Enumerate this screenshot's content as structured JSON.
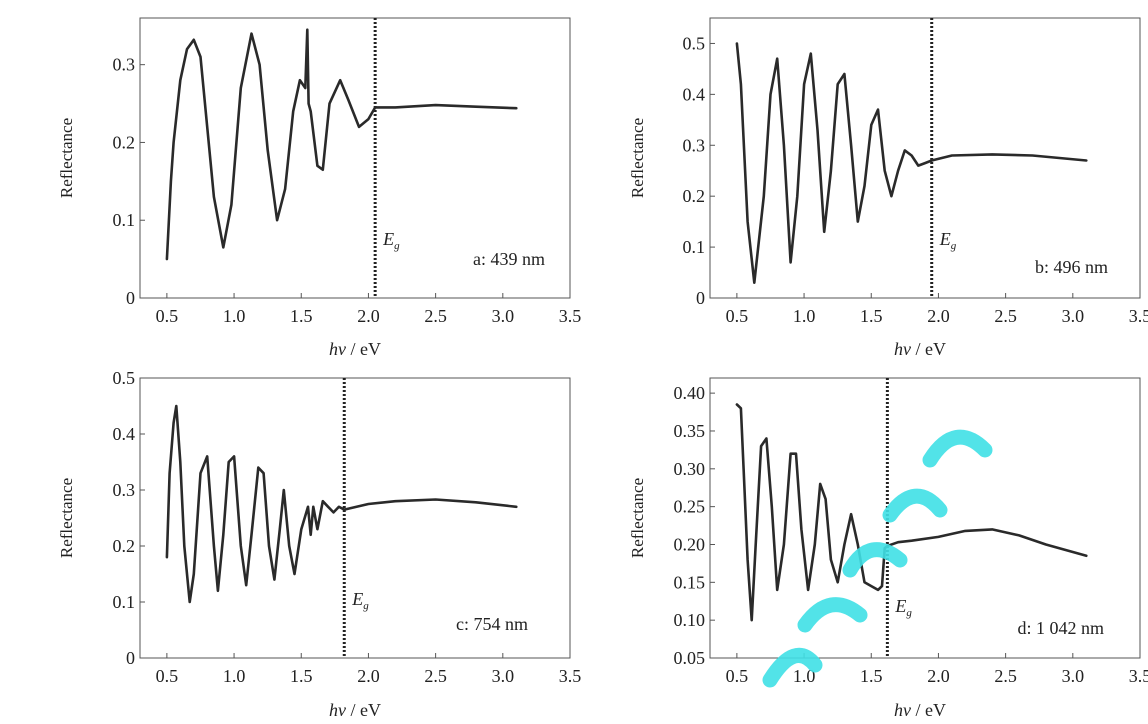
{
  "chart_data": [
    {
      "type": "line",
      "panel": "a",
      "annotation": "a: 439 nm",
      "xlabel_italic": "hν",
      "xlabel_unit": " / eV",
      "ylabel": "Reflectance",
      "xlim": [
        0.3,
        3.5
      ],
      "ylim": [
        0,
        0.36
      ],
      "xticks": [
        0.5,
        1.0,
        1.5,
        2.0,
        2.5,
        3.0,
        3.5
      ],
      "xtick_labels": [
        "0.5",
        "1.0",
        "1.5",
        "2.0",
        "2.5",
        "3.0",
        "3.5"
      ],
      "yticks": [
        0,
        0.1,
        0.2,
        0.3
      ],
      "ytick_labels": [
        "0",
        "0.1",
        "0.2",
        "0.3"
      ],
      "eg_label": "E",
      "eg_sub": "g",
      "eg_x": 2.05,
      "series": [
        {
          "x": [
            0.5,
            0.53,
            0.55,
            0.6,
            0.65,
            0.7,
            0.75,
            0.8,
            0.85,
            0.92,
            0.98,
            1.05,
            1.13,
            1.19,
            1.25,
            1.32,
            1.38,
            1.44,
            1.49,
            1.53,
            1.545,
            1.555,
            1.57,
            1.62,
            1.66,
            1.71,
            1.79,
            1.85,
            1.93,
            2.0,
            2.05,
            2.2,
            2.5,
            2.8,
            3.1
          ],
          "y": [
            0.05,
            0.15,
            0.2,
            0.28,
            0.32,
            0.332,
            0.31,
            0.22,
            0.13,
            0.065,
            0.12,
            0.27,
            0.34,
            0.3,
            0.19,
            0.1,
            0.14,
            0.24,
            0.28,
            0.27,
            0.345,
            0.25,
            0.24,
            0.17,
            0.165,
            0.25,
            0.28,
            0.255,
            0.22,
            0.23,
            0.245,
            0.245,
            0.248,
            0.246,
            0.244
          ]
        }
      ]
    },
    {
      "type": "line",
      "panel": "b",
      "annotation": "b: 496 nm",
      "xlabel_italic": "hν",
      "xlabel_unit": " / eV",
      "ylabel": "Reflectance",
      "xlim": [
        0.3,
        3.5
      ],
      "ylim": [
        0,
        0.55
      ],
      "xticks": [
        0.5,
        1.0,
        1.5,
        2.0,
        2.5,
        3.0,
        3.5
      ],
      "xtick_labels": [
        "0.5",
        "1.0",
        "1.5",
        "2.0",
        "2.5",
        "3.0",
        "3.5"
      ],
      "yticks": [
        0,
        0.1,
        0.2,
        0.3,
        0.4,
        0.5
      ],
      "ytick_labels": [
        "0",
        "0.1",
        "0.2",
        "0.3",
        "0.4",
        "0.5"
      ],
      "eg_label": "E",
      "eg_sub": "g",
      "eg_x": 1.95,
      "series": [
        {
          "x": [
            0.5,
            0.53,
            0.58,
            0.63,
            0.7,
            0.75,
            0.8,
            0.85,
            0.9,
            0.95,
            1.0,
            1.05,
            1.1,
            1.15,
            1.2,
            1.25,
            1.3,
            1.35,
            1.4,
            1.45,
            1.5,
            1.55,
            1.6,
            1.65,
            1.7,
            1.75,
            1.8,
            1.85,
            1.9,
            1.95,
            2.1,
            2.4,
            2.7,
            3.1
          ],
          "y": [
            0.5,
            0.42,
            0.15,
            0.03,
            0.2,
            0.4,
            0.47,
            0.3,
            0.07,
            0.2,
            0.42,
            0.48,
            0.33,
            0.13,
            0.25,
            0.42,
            0.44,
            0.3,
            0.15,
            0.22,
            0.34,
            0.37,
            0.25,
            0.2,
            0.25,
            0.29,
            0.28,
            0.26,
            0.265,
            0.27,
            0.28,
            0.282,
            0.28,
            0.27
          ]
        }
      ]
    },
    {
      "type": "line",
      "panel": "c",
      "annotation": "c: 754 nm",
      "xlabel_italic": "hν",
      "xlabel_unit": " / eV",
      "ylabel": "Reflectance",
      "xlim": [
        0.3,
        3.5
      ],
      "ylim": [
        0,
        0.5
      ],
      "xticks": [
        0.5,
        1.0,
        1.5,
        2.0,
        2.5,
        3.0,
        3.5
      ],
      "xtick_labels": [
        "0.5",
        "1.0",
        "1.5",
        "2.0",
        "2.5",
        "3.0",
        "3.5"
      ],
      "yticks": [
        0,
        0.1,
        0.2,
        0.3,
        0.4,
        0.5
      ],
      "ytick_labels": [
        "0",
        "0.1",
        "0.2",
        "0.3",
        "0.4",
        "0.5"
      ],
      "eg_label": "E",
      "eg_sub": "g",
      "eg_x": 1.82,
      "series": [
        {
          "x": [
            0.5,
            0.52,
            0.55,
            0.57,
            0.6,
            0.63,
            0.67,
            0.7,
            0.75,
            0.8,
            0.85,
            0.88,
            0.92,
            0.96,
            1.0,
            1.05,
            1.09,
            1.13,
            1.18,
            1.22,
            1.26,
            1.3,
            1.34,
            1.37,
            1.41,
            1.45,
            1.5,
            1.55,
            1.57,
            1.59,
            1.62,
            1.66,
            1.7,
            1.74,
            1.78,
            1.82,
            2.0,
            2.2,
            2.5,
            2.8,
            3.1
          ],
          "y": [
            0.18,
            0.33,
            0.42,
            0.45,
            0.35,
            0.2,
            0.1,
            0.15,
            0.33,
            0.36,
            0.2,
            0.12,
            0.22,
            0.35,
            0.36,
            0.2,
            0.13,
            0.22,
            0.34,
            0.33,
            0.2,
            0.14,
            0.23,
            0.3,
            0.2,
            0.15,
            0.23,
            0.27,
            0.22,
            0.27,
            0.23,
            0.28,
            0.27,
            0.26,
            0.27,
            0.265,
            0.275,
            0.28,
            0.283,
            0.278,
            0.27
          ]
        }
      ]
    },
    {
      "type": "line",
      "panel": "d",
      "annotation": "d: 1 042 nm",
      "xlabel_italic": "hν",
      "xlabel_unit": " / eV",
      "ylabel": "Reflectance",
      "xlim": [
        0.3,
        3.5
      ],
      "ylim": [
        0.05,
        0.42
      ],
      "xticks": [
        0.5,
        1.0,
        1.5,
        2.0,
        2.5,
        3.0,
        3.5
      ],
      "xtick_labels": [
        "0.5",
        "1.0",
        "1.5",
        "2.0",
        "2.5",
        "3.0",
        "3.5"
      ],
      "yticks": [
        0.05,
        0.1,
        0.15,
        0.2,
        0.25,
        0.3,
        0.35,
        0.4
      ],
      "ytick_labels": [
        "0.05",
        "0.10",
        "0.15",
        "0.20",
        "0.25",
        "0.30",
        "0.35",
        "0.40"
      ],
      "eg_label": "E",
      "eg_sub": "g",
      "eg_x": 1.62,
      "series": [
        {
          "x": [
            0.5,
            0.53,
            0.55,
            0.58,
            0.61,
            0.64,
            0.68,
            0.72,
            0.76,
            0.8,
            0.85,
            0.9,
            0.94,
            0.98,
            1.03,
            1.08,
            1.12,
            1.16,
            1.2,
            1.25,
            1.3,
            1.35,
            1.4,
            1.45,
            1.5,
            1.55,
            1.58,
            1.6,
            1.62,
            1.7,
            1.8,
            2.0,
            2.2,
            2.4,
            2.6,
            2.8,
            3.1
          ],
          "y": [
            0.385,
            0.38,
            0.3,
            0.18,
            0.1,
            0.2,
            0.33,
            0.34,
            0.25,
            0.14,
            0.2,
            0.32,
            0.32,
            0.22,
            0.14,
            0.2,
            0.28,
            0.26,
            0.18,
            0.15,
            0.2,
            0.24,
            0.2,
            0.15,
            0.145,
            0.14,
            0.145,
            0.195,
            0.198,
            0.203,
            0.205,
            0.21,
            0.218,
            0.22,
            0.212,
            0.2,
            0.185
          ]
        }
      ]
    }
  ]
}
